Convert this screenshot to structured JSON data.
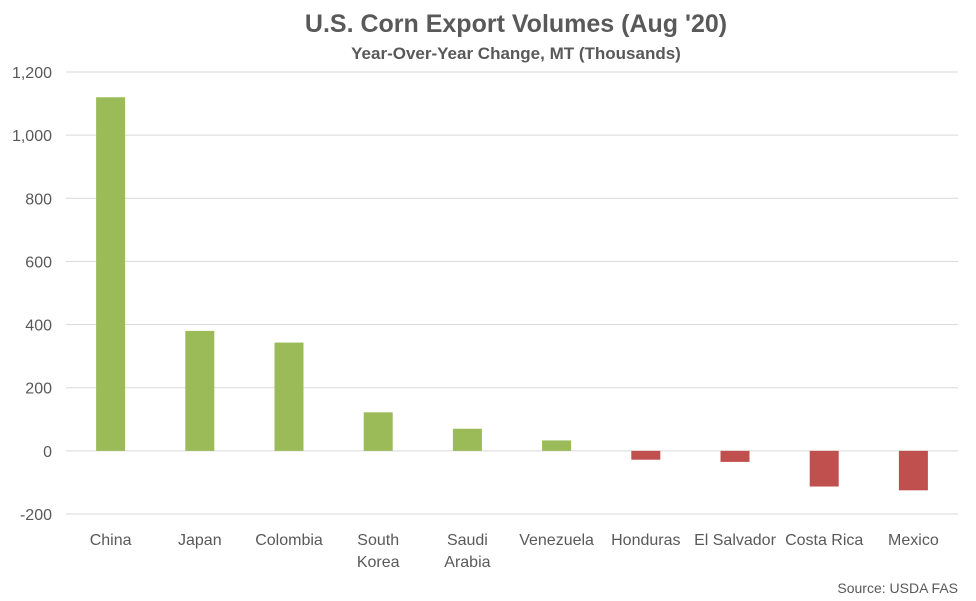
{
  "chart_data": {
    "type": "bar",
    "title": "U.S. Corn Export Volumes (Aug '20)",
    "subtitle": "Year-Over-Year Change, MT (Thousands)",
    "categories": [
      "China",
      "Japan",
      "Colombia",
      "South Korea",
      "Saudi Arabia",
      "Venezuela",
      "Honduras",
      "El Salvador",
      "Costa Rica",
      "Mexico"
    ],
    "category_lines": [
      [
        "China"
      ],
      [
        "Japan"
      ],
      [
        "Colombia"
      ],
      [
        "South",
        "Korea"
      ],
      [
        "Saudi",
        "Arabia"
      ],
      [
        "Venezuela"
      ],
      [
        "Honduras"
      ],
      [
        "El Salvador"
      ],
      [
        "Costa Rica"
      ],
      [
        "Mexico"
      ]
    ],
    "values": [
      1120,
      380,
      343,
      122,
      70,
      33,
      -28,
      -35,
      -113,
      -125
    ],
    "ylim": [
      -200,
      1200
    ],
    "yticks": [
      -200,
      0,
      200,
      400,
      600,
      800,
      1000,
      1200
    ],
    "ytick_labels": [
      "-200",
      "0",
      "200",
      "400",
      "600",
      "800",
      "1,000",
      "1,200"
    ],
    "grid": true,
    "colors": {
      "positive": "#9BBB59",
      "negative": "#C0504D",
      "grid": "#D9D9D9",
      "text": "#595959"
    },
    "source": "Source: USDA FAS"
  }
}
